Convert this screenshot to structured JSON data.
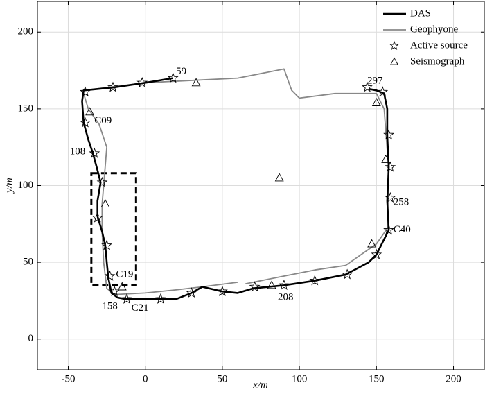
{
  "chart_data": {
    "type": "line",
    "xlabel": "x/m",
    "ylabel": "y/m",
    "xlim": [
      -70,
      220
    ],
    "ylim": [
      -20,
      220
    ],
    "xticks": [
      -50,
      0,
      50,
      100,
      150,
      200
    ],
    "yticks": [
      0,
      50,
      100,
      150,
      200
    ],
    "grid": true,
    "legend": "upper right",
    "series": [
      {
        "name": "DAS",
        "color": "#000000",
        "marker": "line",
        "x": [
          18,
          0,
          -20,
          -40,
          -41,
          -40,
          -37,
          -34,
          -31,
          -29,
          -31,
          -31,
          -28,
          -26,
          -25,
          -24,
          -22,
          -18,
          -13,
          0,
          20,
          30,
          37,
          50,
          60,
          70,
          90,
          110,
          130,
          145,
          150,
          155,
          158,
          157,
          158,
          157,
          157,
          155,
          150,
          145
        ],
        "values": [
          170,
          167,
          164,
          162,
          155,
          141,
          130,
          121,
          110,
          102,
          90,
          80,
          70,
          61,
          50,
          40,
          30,
          27,
          26,
          26,
          26,
          30,
          34,
          31,
          30,
          33,
          35,
          38,
          42,
          50,
          55,
          65,
          71,
          90,
          112,
          133,
          150,
          160,
          162,
          163
        ]
      },
      {
        "name": "Geophyone",
        "color": "#888888",
        "marker": "line",
        "x": [
          -40,
          0,
          60,
          90,
          95,
          100,
          123,
          150,
          155,
          158,
          157,
          150,
          130,
          110,
          90,
          65,
          null,
          60,
          37,
          20,
          0,
          -20,
          -25,
          -27,
          -28,
          -28,
          -27,
          -25,
          -30,
          -37,
          -40
        ],
        "values": [
          162,
          167,
          170,
          176,
          162,
          157,
          160,
          160,
          150,
          110,
          72,
          62,
          48,
          45,
          41,
          36,
          null,
          37,
          34,
          32,
          30,
          29,
          33,
          50,
          70,
          88,
          100,
          125,
          140,
          150,
          160
        ]
      },
      {
        "name": "Active source",
        "color": "#000000",
        "marker": "star",
        "x": [
          18,
          -2,
          -21,
          -39,
          -39,
          -33,
          -28,
          -31,
          -25,
          -23,
          -20,
          -12,
          10,
          30,
          50,
          71,
          90,
          110,
          131,
          150,
          158,
          159,
          159,
          158,
          154,
          144
        ],
        "values": [
          170,
          167,
          164,
          161,
          141,
          121,
          102,
          79,
          61,
          41,
          31,
          26,
          26,
          30,
          31,
          34,
          35,
          38,
          42,
          55,
          71,
          92,
          112,
          133,
          161,
          164
        ]
      },
      {
        "name": "Seismograph",
        "color": "#000000",
        "marker": "triangle",
        "x": [
          33,
          -36,
          -26,
          -15,
          82,
          87,
          147,
          150,
          156
        ],
        "values": [
          167,
          148,
          88,
          34,
          35,
          105,
          62,
          154,
          117
        ]
      }
    ],
    "box": {
      "x": [
        -35,
        -6
      ],
      "y": [
        35,
        108
      ]
    },
    "annotations": [
      {
        "text": "59",
        "x": 20,
        "y": 174
      },
      {
        "text": "297",
        "x": 144,
        "y": 168
      },
      {
        "text": "C09",
        "x": -33,
        "y": 142
      },
      {
        "text": "108",
        "x": -49,
        "y": 122
      },
      {
        "text": "258",
        "x": 161,
        "y": 89
      },
      {
        "text": "C40",
        "x": 161,
        "y": 71
      },
      {
        "text": "C19",
        "x": -19,
        "y": 42
      },
      {
        "text": "158",
        "x": -28,
        "y": 21
      },
      {
        "text": "C21",
        "x": -9,
        "y": 20
      },
      {
        "text": "208",
        "x": 86,
        "y": 27
      }
    ]
  }
}
